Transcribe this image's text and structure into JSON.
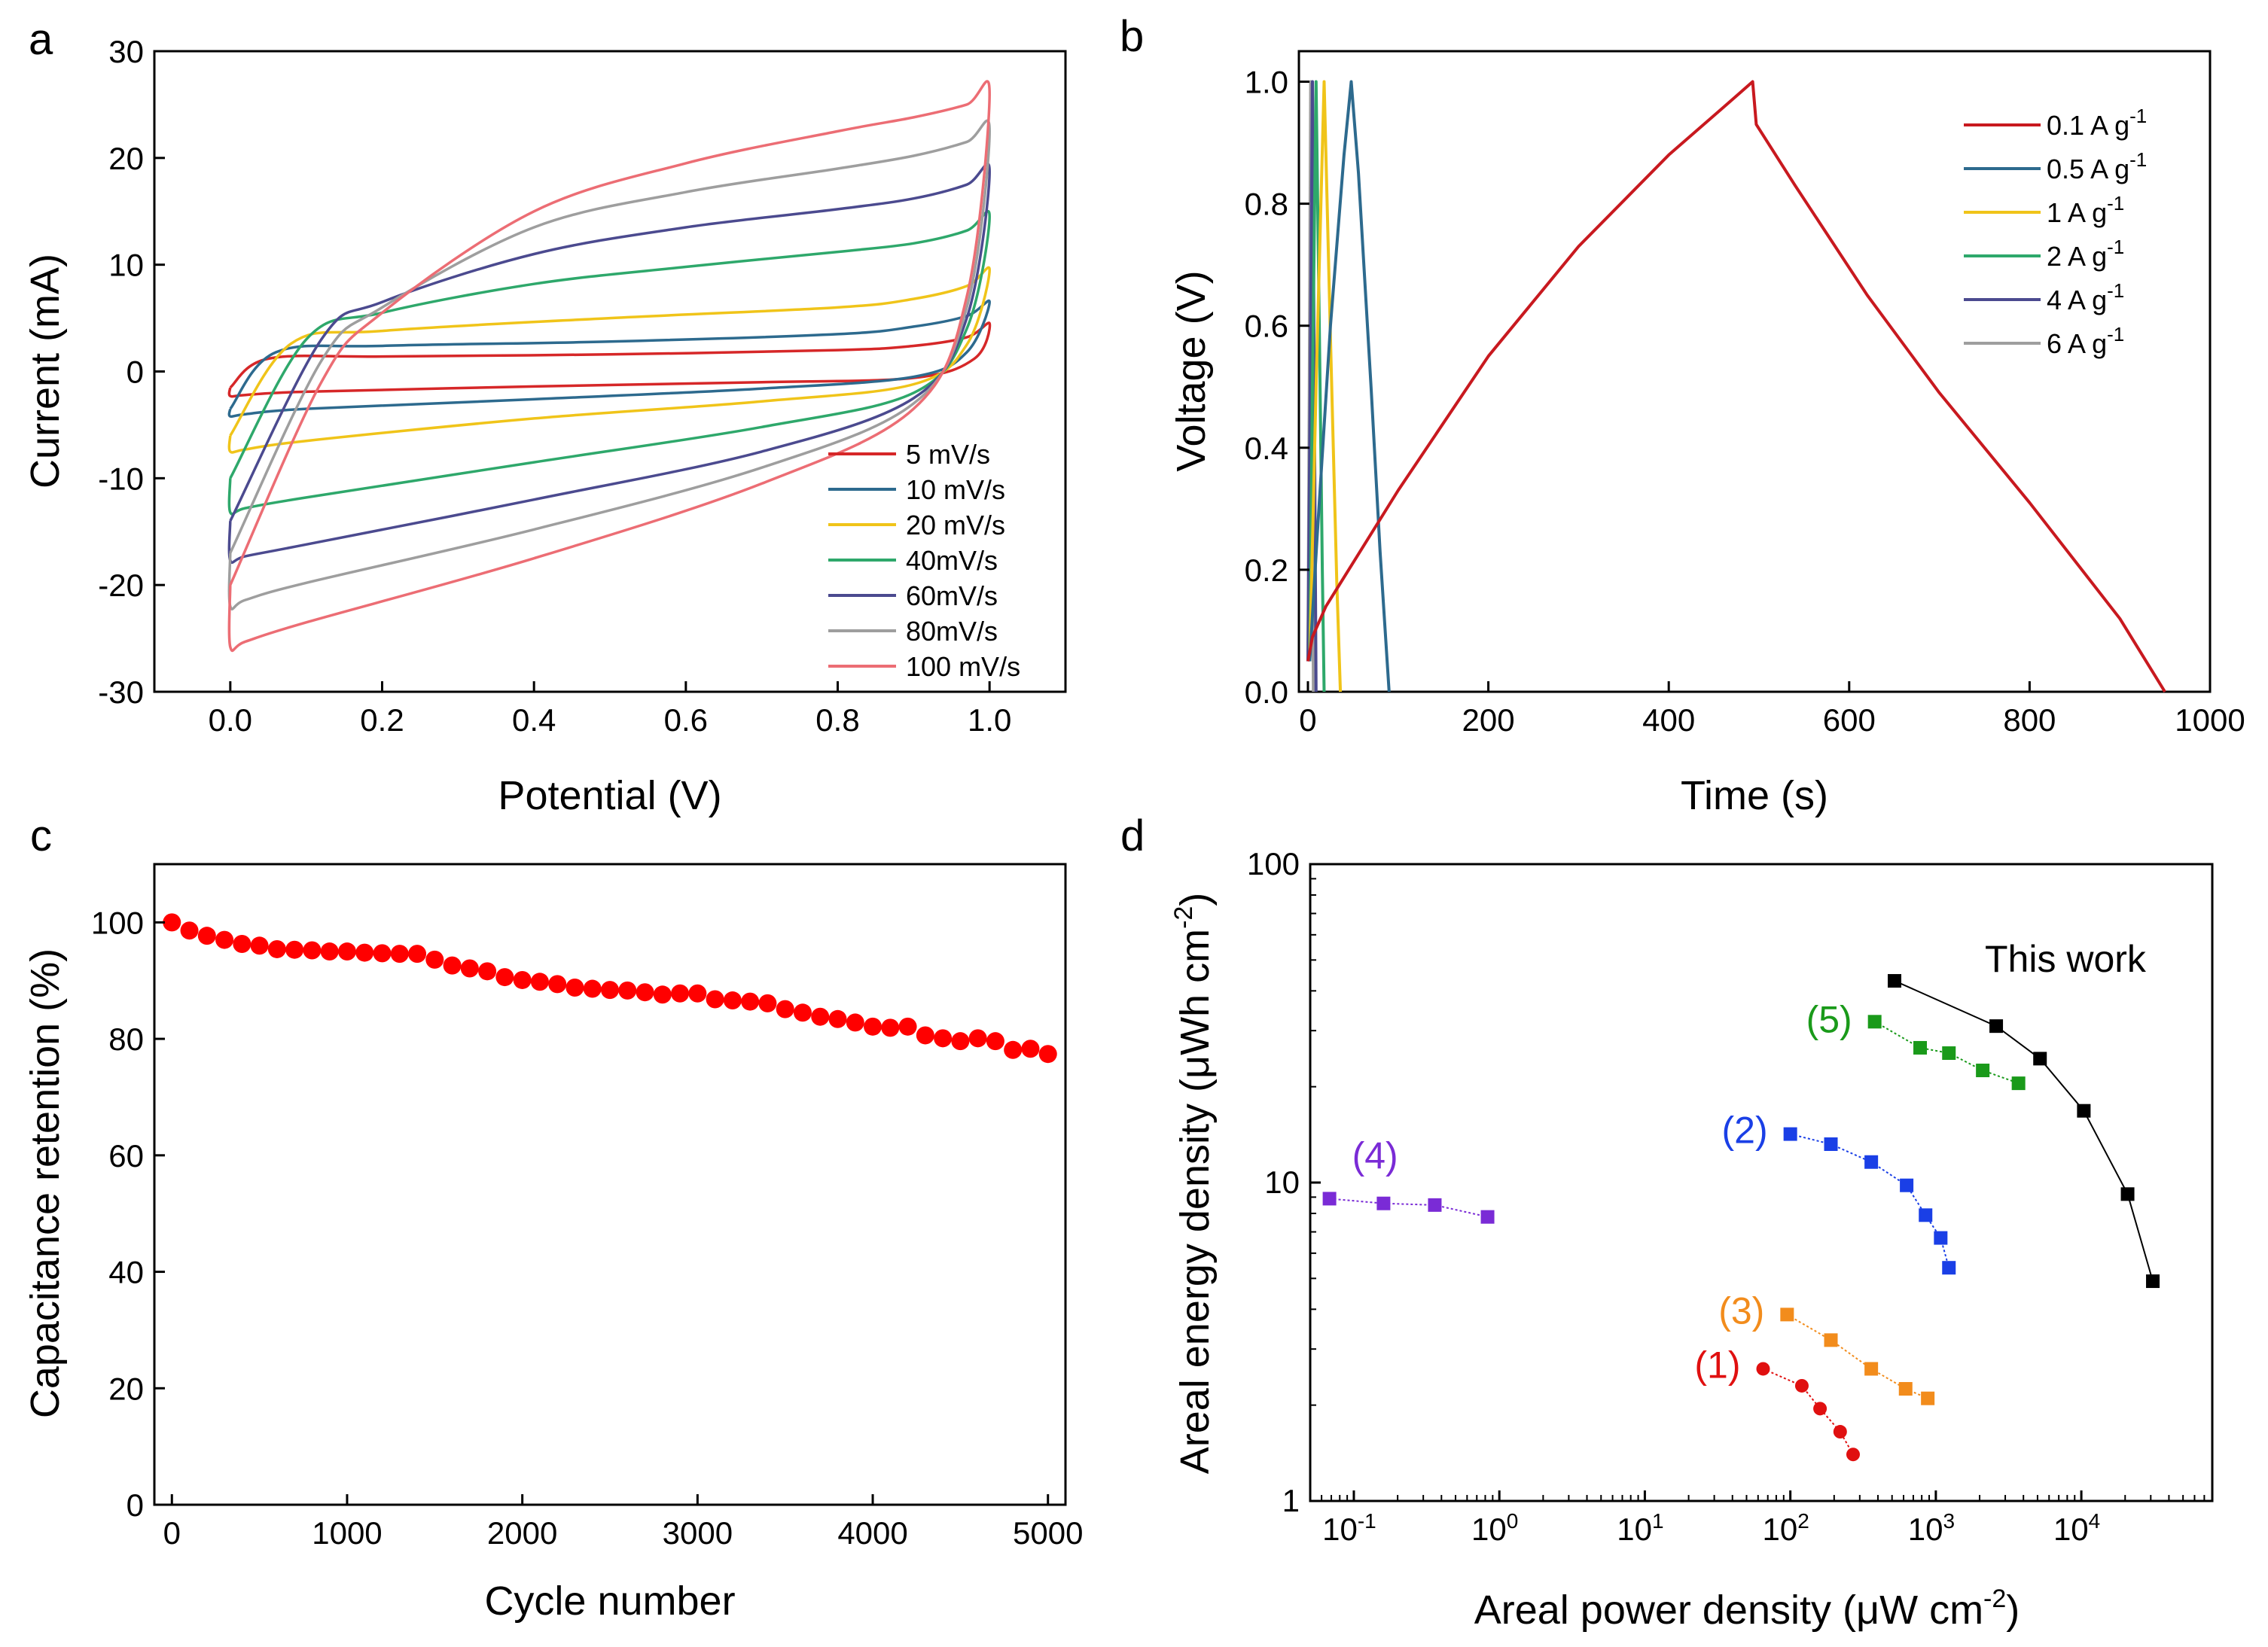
{
  "chart_data": [
    {
      "panel": "a",
      "type": "line",
      "xlabel": "Potential (V)",
      "ylabel": "Current (mA)",
      "xlim": [
        -0.1,
        1.1
      ],
      "ylim": [
        -30,
        30
      ],
      "xticks": [
        "0.0",
        "0.2",
        "0.4",
        "0.6",
        "0.8",
        "1.0"
      ],
      "xtick_values": [
        0,
        0.2,
        0.4,
        0.6,
        0.8,
        1.0
      ],
      "yticks": [
        "-30",
        "-20",
        "-10",
        "0",
        "10",
        "20",
        "30"
      ],
      "ytick_values": [
        -30,
        -20,
        -10,
        0,
        10,
        20,
        30
      ],
      "legend_position": "bottom-right",
      "series": [
        {
          "name": "5 mV/s",
          "color": "#d62728",
          "anodic": [
            [
              0,
              -1.5
            ],
            [
              0.05,
              1.2
            ],
            [
              0.2,
              1.4
            ],
            [
              0.5,
              1.6
            ],
            [
              0.8,
              2.0
            ],
            [
              0.9,
              2.4
            ],
            [
              0.97,
              3.2
            ],
            [
              1.0,
              4.5
            ]
          ],
          "cathodic": [
            [
              1.0,
              4.5
            ],
            [
              0.98,
              1.2
            ],
            [
              0.9,
              -0.6
            ],
            [
              0.7,
              -1.0
            ],
            [
              0.4,
              -1.4
            ],
            [
              0.1,
              -1.9
            ],
            [
              0.02,
              -2.2
            ],
            [
              0,
              -2.3
            ]
          ]
        },
        {
          "name": "10 mV/s",
          "color": "#2d6a8e",
          "anodic": [
            [
              0,
              -3.5
            ],
            [
              0.06,
              1.8
            ],
            [
              0.2,
              2.4
            ],
            [
              0.5,
              2.8
            ],
            [
              0.8,
              3.5
            ],
            [
              0.9,
              4.2
            ],
            [
              0.97,
              5.2
            ],
            [
              1.0,
              6.5
            ]
          ],
          "cathodic": [
            [
              1.0,
              6.5
            ],
            [
              0.97,
              1.8
            ],
            [
              0.9,
              -0.5
            ],
            [
              0.7,
              -1.6
            ],
            [
              0.4,
              -2.6
            ],
            [
              0.1,
              -3.5
            ],
            [
              0.02,
              -4.0
            ],
            [
              0,
              -4.2
            ]
          ]
        },
        {
          "name": "20 mV/s",
          "color": "#f0c419",
          "anodic": [
            [
              0,
              -6.0
            ],
            [
              0.08,
              2.6
            ],
            [
              0.2,
              3.8
            ],
            [
              0.5,
              5.0
            ],
            [
              0.8,
              6.0
            ],
            [
              0.9,
              6.8
            ],
            [
              0.97,
              8.0
            ],
            [
              1.0,
              9.5
            ]
          ],
          "cathodic": [
            [
              1.0,
              9.5
            ],
            [
              0.97,
              2.5
            ],
            [
              0.9,
              -1.2
            ],
            [
              0.7,
              -2.8
            ],
            [
              0.4,
              -4.4
            ],
            [
              0.1,
              -6.5
            ],
            [
              0.02,
              -7.3
            ],
            [
              0,
              -7.5
            ]
          ]
        },
        {
          "name": "40mV/s",
          "color": "#2ea86b",
          "anodic": [
            [
              0,
              -10.0
            ],
            [
              0.1,
              3.0
            ],
            [
              0.2,
              5.5
            ],
            [
              0.4,
              8.2
            ],
            [
              0.6,
              9.8
            ],
            [
              0.8,
              11.2
            ],
            [
              0.9,
              12.0
            ],
            [
              0.97,
              13.2
            ],
            [
              1.0,
              14.5
            ]
          ],
          "cathodic": [
            [
              1.0,
              14.5
            ],
            [
              0.97,
              4.0
            ],
            [
              0.9,
              -2.0
            ],
            [
              0.7,
              -5.2
            ],
            [
              0.4,
              -8.5
            ],
            [
              0.1,
              -11.8
            ],
            [
              0.02,
              -12.8
            ],
            [
              0,
              -13.2
            ]
          ]
        },
        {
          "name": "60mV/s",
          "color": "#4b4a8f",
          "anodic": [
            [
              0,
              -14.0
            ],
            [
              0.12,
              3.0
            ],
            [
              0.2,
              6.5
            ],
            [
              0.4,
              11.0
            ],
            [
              0.6,
              13.5
            ],
            [
              0.8,
              15.2
            ],
            [
              0.9,
              16.2
            ],
            [
              0.97,
              17.5
            ],
            [
              1.0,
              18.7
            ]
          ],
          "cathodic": [
            [
              1.0,
              18.7
            ],
            [
              0.97,
              5.0
            ],
            [
              0.9,
              -2.5
            ],
            [
              0.7,
              -7.5
            ],
            [
              0.4,
              -12.0
            ],
            [
              0.1,
              -16.2
            ],
            [
              0.02,
              -17.3
            ],
            [
              0,
              -17.7
            ]
          ]
        },
        {
          "name": "80mV/s",
          "color": "#9e9e9e",
          "anodic": [
            [
              0,
              -17.0
            ],
            [
              0.12,
              1.0
            ],
            [
              0.2,
              6.0
            ],
            [
              0.4,
              13.5
            ],
            [
              0.6,
              16.8
            ],
            [
              0.8,
              19.0
            ],
            [
              0.9,
              20.2
            ],
            [
              0.97,
              21.5
            ],
            [
              1.0,
              22.5
            ]
          ],
          "cathodic": [
            [
              1.0,
              22.5
            ],
            [
              0.97,
              6.0
            ],
            [
              0.9,
              -3.0
            ],
            [
              0.7,
              -9.0
            ],
            [
              0.4,
              -14.8
            ],
            [
              0.1,
              -19.8
            ],
            [
              0.02,
              -21.4
            ],
            [
              0,
              -22.0
            ]
          ]
        },
        {
          "name": "100 mV/s",
          "color": "#ec6d74",
          "anodic": [
            [
              0,
              -20.0
            ],
            [
              0.12,
              -1.0
            ],
            [
              0.2,
              5.5
            ],
            [
              0.4,
              15.0
            ],
            [
              0.6,
              19.5
            ],
            [
              0.8,
              22.5
            ],
            [
              0.9,
              23.8
            ],
            [
              0.97,
              25.0
            ],
            [
              1.0,
              26.0
            ]
          ],
          "cathodic": [
            [
              1.0,
              26.0
            ],
            [
              0.97,
              7.0
            ],
            [
              0.9,
              -3.5
            ],
            [
              0.7,
              -10.5
            ],
            [
              0.4,
              -17.5
            ],
            [
              0.1,
              -23.5
            ],
            [
              0.02,
              -25.3
            ],
            [
              0,
              -25.8
            ]
          ]
        }
      ]
    },
    {
      "panel": "b",
      "type": "line",
      "xlabel": "Time (s)",
      "ylabel": "Voltage (V)",
      "xlim": [
        -10,
        1000
      ],
      "ylim": [
        0,
        1.05
      ],
      "xticks": [
        "0",
        "200",
        "400",
        "600",
        "800",
        "1000"
      ],
      "xtick_values": [
        0,
        200,
        400,
        600,
        800,
        1000
      ],
      "yticks": [
        "0.0",
        "0.2",
        "0.4",
        "0.6",
        "0.8",
        "1.0"
      ],
      "ytick_values": [
        0,
        0.2,
        0.4,
        0.6,
        0.8,
        1.0
      ],
      "legend_position": "top-right",
      "legend_unit": "A g",
      "legend_superscript": "-1",
      "series": [
        {
          "name": "0.1",
          "color": "#c8191f",
          "points": [
            [
              0,
              0.05
            ],
            [
              5,
              0.09
            ],
            [
              20,
              0.14
            ],
            [
              100,
              0.33
            ],
            [
              200,
              0.55
            ],
            [
              300,
              0.73
            ],
            [
              400,
              0.88
            ],
            [
              470,
              0.97
            ],
            [
              493,
              1.0
            ],
            [
              497,
              0.93
            ],
            [
              540,
              0.83
            ],
            [
              620,
              0.65
            ],
            [
              700,
              0.49
            ],
            [
              800,
              0.31
            ],
            [
              900,
              0.12
            ],
            [
              950,
              0.0
            ]
          ]
        },
        {
          "name": "0.5",
          "color": "#2d6a8e",
          "points": [
            [
              2,
              0.05
            ],
            [
              10,
              0.25
            ],
            [
              25,
              0.6
            ],
            [
              40,
              0.88
            ],
            [
              48,
              1.0
            ],
            [
              56,
              0.85
            ],
            [
              70,
              0.5
            ],
            [
              80,
              0.23
            ],
            [
              90,
              0.0
            ]
          ]
        },
        {
          "name": "1",
          "color": "#f0c419",
          "points": [
            [
              2,
              0.05
            ],
            [
              9,
              0.5
            ],
            [
              18,
              1.0
            ],
            [
              25,
              0.58
            ],
            [
              32,
              0.18
            ],
            [
              36,
              0.0
            ]
          ]
        },
        {
          "name": "2",
          "color": "#2ea86b",
          "points": [
            [
              2,
              0.05
            ],
            [
              5,
              0.5
            ],
            [
              9,
              1.0
            ],
            [
              13,
              0.55
            ],
            [
              16,
              0.2
            ],
            [
              18,
              0.0
            ]
          ]
        },
        {
          "name": "4",
          "color": "#4b4a8f",
          "points": [
            [
              0,
              0.05
            ],
            [
              2.5,
              0.5
            ],
            [
              5,
              1.0
            ],
            [
              7,
              0.5
            ],
            [
              9,
              0.0
            ]
          ]
        },
        {
          "name": "6",
          "color": "#9e9e9e",
          "points": [
            [
              0,
              0.05
            ],
            [
              1.5,
              0.5
            ],
            [
              3,
              1.0
            ],
            [
              4.5,
              0.5
            ],
            [
              6,
              0.0
            ]
          ]
        }
      ]
    },
    {
      "panel": "c",
      "type": "scatter",
      "xlabel": "Cycle number",
      "ylabel": "Capacitance retention (%)",
      "xlim": [
        -100,
        5100
      ],
      "ylim": [
        0,
        110
      ],
      "xticks": [
        "0",
        "1000",
        "2000",
        "3000",
        "4000",
        "5000"
      ],
      "xtick_values": [
        0,
        1000,
        2000,
        3000,
        4000,
        5000
      ],
      "yticks": [
        "0",
        "20",
        "40",
        "60",
        "80",
        "100"
      ],
      "ytick_values": [
        0,
        20,
        40,
        60,
        80,
        100
      ],
      "marker_color": "#ff0000",
      "x": [
        0,
        100,
        200,
        300,
        400,
        500,
        600,
        700,
        800,
        900,
        1000,
        1100,
        1200,
        1300,
        1400,
        1500,
        1600,
        1700,
        1800,
        1900,
        2000,
        2100,
        2200,
        2300,
        2400,
        2500,
        2600,
        2700,
        2800,
        2900,
        3000,
        3100,
        3200,
        3300,
        3400,
        3500,
        3600,
        3700,
        3800,
        3900,
        4000,
        4100,
        4200,
        4300,
        4400,
        4500,
        4600,
        4700,
        4800,
        4900,
        5000
      ],
      "y": [
        100,
        98.6,
        97.7,
        97.0,
        96.3,
        96.0,
        95.4,
        95.3,
        95.2,
        95.0,
        95.0,
        94.8,
        94.7,
        94.6,
        94.6,
        93.6,
        92.6,
        92.1,
        91.6,
        90.6,
        90.1,
        89.8,
        89.4,
        88.8,
        88.6,
        88.4,
        88.3,
        88.0,
        87.6,
        87.8,
        87.8,
        86.8,
        86.6,
        86.4,
        86.1,
        85.1,
        84.5,
        83.8,
        83.4,
        82.8,
        82.1,
        81.9,
        82.1,
        80.6,
        80.1,
        79.6,
        80.1,
        79.6,
        78.1,
        78.3,
        77.4
      ]
    },
    {
      "panel": "d",
      "type": "scatter",
      "xlabel_main": "Areal power density (",
      "xlabel_mu": "μ",
      "xlabel_unit": "W cm",
      "xlabel_sup": "-2",
      "xlabel_close": ")",
      "ylabel_main": "Areal energy density (",
      "ylabel_mu": "μ",
      "ylabel_unit": "Wh cm",
      "ylabel_sup": "-2",
      "ylabel_close": ")",
      "xscale": "log",
      "yscale": "log",
      "xlim_log10": [
        -1.3,
        4.9
      ],
      "ylim_log10": [
        0,
        2
      ],
      "xticks": [
        {
          "base": "10",
          "exp": "-1",
          "log10": -1
        },
        {
          "base": "10",
          "exp": "0",
          "log10": 0
        },
        {
          "base": "10",
          "exp": "1",
          "log10": 1
        },
        {
          "base": "10",
          "exp": "2",
          "log10": 2
        },
        {
          "base": "10",
          "exp": "3",
          "log10": 3
        },
        {
          "base": "10",
          "exp": "4",
          "log10": 4
        }
      ],
      "yticks": [
        {
          "label": "1",
          "value": 1
        },
        {
          "label": "10",
          "value": 10
        },
        {
          "label": "100",
          "value": 100
        }
      ],
      "series": [
        {
          "name": "This work",
          "label": "This work",
          "color": "#000000",
          "marker": "square",
          "x": [
            520,
            2600,
            5200,
            10400,
            20800,
            31000
          ],
          "y": [
            43,
            31,
            24.5,
            16.8,
            9.2,
            4.9
          ]
        },
        {
          "name": "(5)",
          "label": "(5)",
          "color": "#1a9a1a",
          "marker": "square",
          "x": [
            380,
            780,
            1230,
            2100,
            3700
          ],
          "y": [
            32,
            26.5,
            25.5,
            22.5,
            20.5
          ]
        },
        {
          "name": "(2)",
          "label": "(2)",
          "color": "#1a3fe6",
          "marker": "square",
          "x": [
            100,
            190,
            360,
            630,
            850,
            1080,
            1230
          ],
          "y": [
            14.2,
            13.2,
            11.6,
            9.8,
            7.9,
            6.7,
            5.4
          ]
        },
        {
          "name": "(4)",
          "label": "(4)",
          "color": "#7a2bd6",
          "marker": "square",
          "x": [
            0.068,
            0.16,
            0.36,
            0.83
          ],
          "y": [
            8.9,
            8.6,
            8.5,
            7.8
          ]
        },
        {
          "name": "(3)",
          "label": "(3)",
          "color": "#f28c1c",
          "marker": "square",
          "x": [
            95,
            190,
            360,
            620,
            880
          ],
          "y": [
            3.85,
            3.2,
            2.6,
            2.25,
            2.1
          ]
        },
        {
          "name": "(1)",
          "label": "(1)",
          "color": "#e01010",
          "marker": "circle",
          "x": [
            65,
            120,
            160,
            220,
            270
          ],
          "y": [
            2.6,
            2.3,
            1.95,
            1.65,
            1.4
          ]
        }
      ]
    }
  ]
}
